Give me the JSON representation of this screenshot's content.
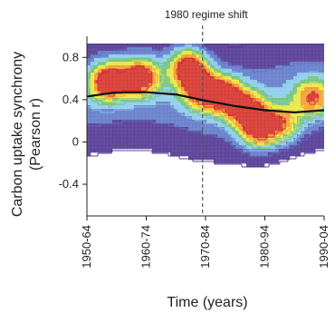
{
  "chart_data": {
    "type": "heatmap",
    "title": "",
    "xlabel": "Time (years)",
    "ylabel_line1": "Carbon uptake synchrony",
    "ylabel_line2": "(Pearson r)",
    "x_categories": [
      "1950-64",
      "1960-74",
      "1970-84",
      "1980-94",
      "1990-04"
    ],
    "ylim": [
      -0.7,
      1.0
    ],
    "y_ticks": [
      0.8,
      0.4,
      0,
      -0.4
    ],
    "y_tick_labels": [
      "0.8",
      "0.4",
      "0",
      "-0.4"
    ],
    "annotation": {
      "text": "1980 regime shift",
      "x_category": "1960-74",
      "x_offset_fraction": 0.95
    },
    "trend_line": {
      "name": "",
      "x": [
        0.0,
        0.5,
        1.0,
        1.5,
        2.0,
        2.5,
        3.0,
        3.5,
        4.0
      ],
      "y": [
        0.43,
        0.47,
        0.47,
        0.45,
        0.39,
        0.34,
        0.3,
        0.28,
        0.3
      ]
    },
    "density_hotspots": [
      {
        "x": 0.35,
        "y": 0.58,
        "level": 1.0
      },
      {
        "x": 0.9,
        "y": 0.62,
        "level": 0.95
      },
      {
        "x": 1.7,
        "y": 0.72,
        "level": 1.0
      },
      {
        "x": 1.9,
        "y": 0.5,
        "level": 0.8
      },
      {
        "x": 2.3,
        "y": 0.45,
        "level": 0.9
      },
      {
        "x": 2.7,
        "y": 0.3,
        "level": 0.85
      },
      {
        "x": 2.9,
        "y": 0.1,
        "level": 0.75
      },
      {
        "x": 3.3,
        "y": 0.18,
        "level": 0.65
      },
      {
        "x": 3.8,
        "y": 0.42,
        "level": 0.7
      }
    ],
    "colors": {
      "scale": [
        "#4b2f8f",
        "#5a74c8",
        "#86c9e8",
        "#6cc27a",
        "#e9e53b",
        "#f39a2c",
        "#d42a22"
      ],
      "trend_line": "#111111",
      "annotation_line": "#555555"
    }
  }
}
